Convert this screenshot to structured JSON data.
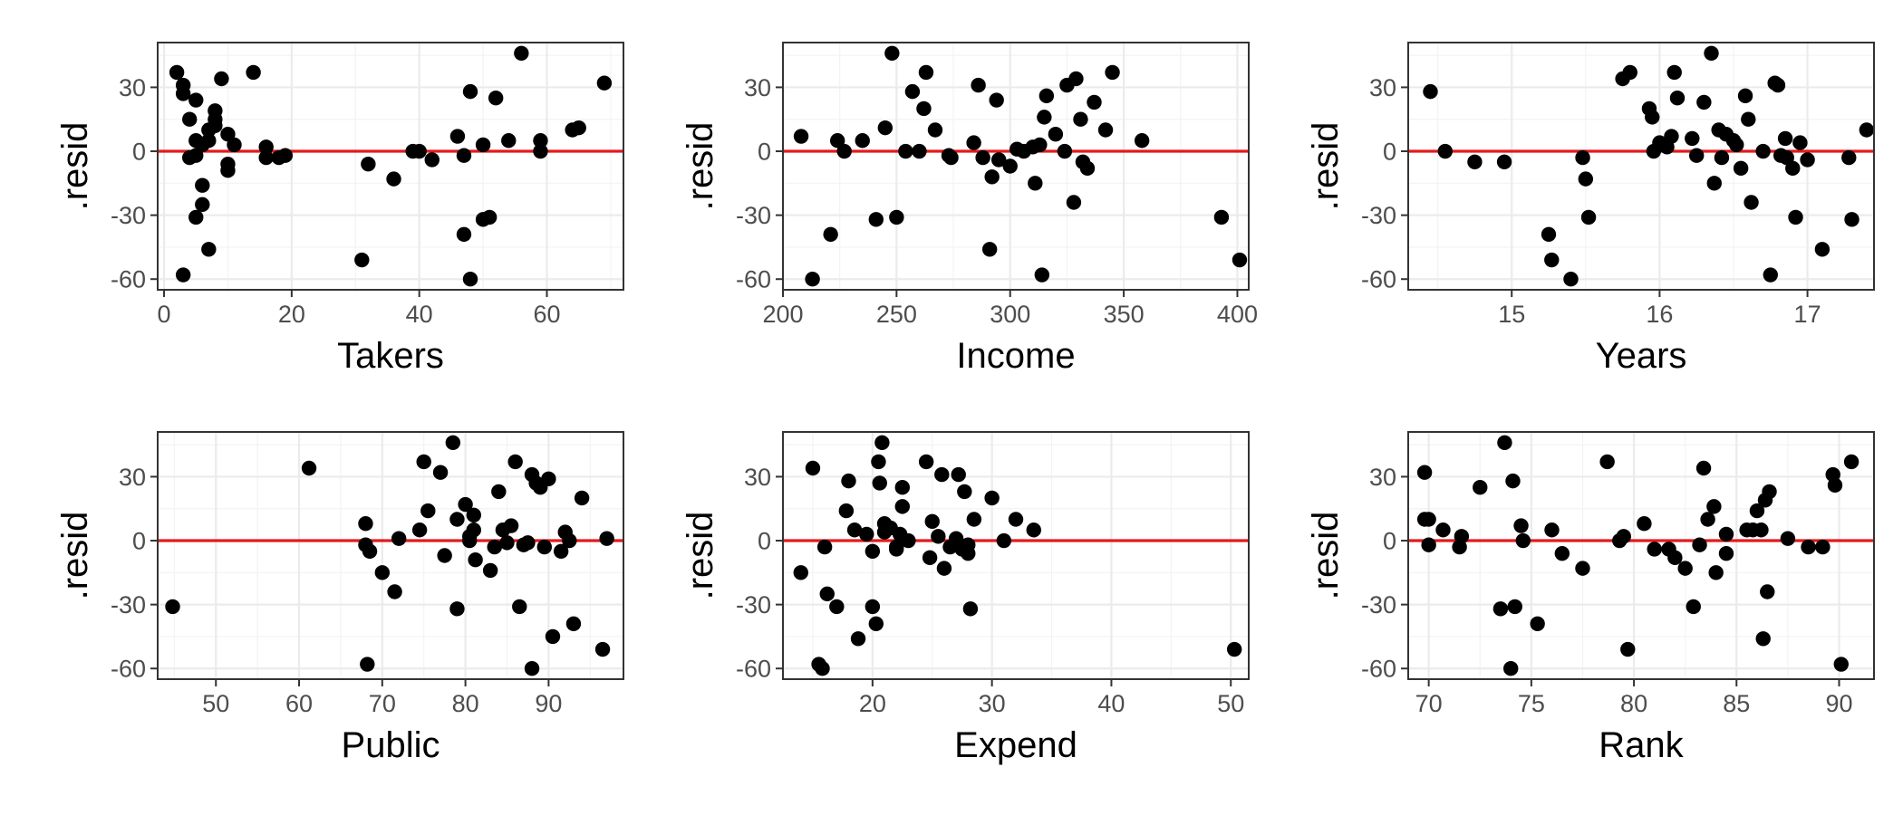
{
  "colors": {
    "points": "#000000",
    "reference_line": "#e41a1c",
    "grid": "#ebebeb",
    "border": "#333333"
  },
  "chart_data": [
    {
      "type": "scatter",
      "xlabel": "Takers",
      "ylabel": ".resid",
      "xlim": [
        -1,
        72
      ],
      "ylim": [
        -65,
        51
      ],
      "xticks": [
        0,
        20,
        40,
        60
      ],
      "yticks": [
        -60,
        -30,
        0,
        30
      ],
      "hline": 0,
      "points": [
        [
          2,
          37
        ],
        [
          3,
          31
        ],
        [
          3,
          27
        ],
        [
          3,
          -58
        ],
        [
          4,
          15
        ],
        [
          4,
          -3
        ],
        [
          5,
          24
        ],
        [
          5,
          5
        ],
        [
          5,
          -2
        ],
        [
          5,
          -31
        ],
        [
          6,
          3
        ],
        [
          6,
          -16
        ],
        [
          6,
          -25
        ],
        [
          7,
          10
        ],
        [
          7,
          -46
        ],
        [
          7,
          5
        ],
        [
          8,
          19
        ],
        [
          8,
          15
        ],
        [
          8,
          12
        ],
        [
          9,
          34
        ],
        [
          10,
          8
        ],
        [
          10,
          -6
        ],
        [
          10,
          -9
        ],
        [
          11,
          3
        ],
        [
          14,
          37
        ],
        [
          16,
          2
        ],
        [
          16,
          -3
        ],
        [
          18,
          -3
        ],
        [
          19,
          -2
        ],
        [
          31,
          -51
        ],
        [
          32,
          -6
        ],
        [
          36,
          -13
        ],
        [
          39,
          0
        ],
        [
          40,
          0
        ],
        [
          42,
          -4
        ],
        [
          46,
          7
        ],
        [
          47,
          -2
        ],
        [
          47,
          -39
        ],
        [
          48,
          28
        ],
        [
          48,
          -60
        ],
        [
          50,
          3
        ],
        [
          50,
          -32
        ],
        [
          51,
          -31
        ],
        [
          52,
          25
        ],
        [
          54,
          5
        ],
        [
          56,
          46
        ],
        [
          59,
          5
        ],
        [
          59,
          0
        ],
        [
          64,
          10
        ],
        [
          65,
          11
        ],
        [
          69,
          32
        ]
      ]
    },
    {
      "type": "scatter",
      "xlabel": "Income",
      "ylabel": ".resid",
      "xlim": [
        200,
        405
      ],
      "ylim": [
        -65,
        51
      ],
      "xticks": [
        200,
        250,
        300,
        350,
        400
      ],
      "yticks": [
        -60,
        -30,
        0,
        30
      ],
      "hline": 0,
      "points": [
        [
          208,
          7
        ],
        [
          213,
          -60
        ],
        [
          221,
          -39
        ],
        [
          224,
          5
        ],
        [
          227,
          0
        ],
        [
          235,
          5
        ],
        [
          241,
          -32
        ],
        [
          245,
          11
        ],
        [
          248,
          46
        ],
        [
          250,
          -31
        ],
        [
          254,
          0
        ],
        [
          257,
          28
        ],
        [
          260,
          0
        ],
        [
          262,
          20
        ],
        [
          263,
          37
        ],
        [
          267,
          10
        ],
        [
          273,
          -2
        ],
        [
          274,
          -3
        ],
        [
          284,
          4
        ],
        [
          286,
          31
        ],
        [
          288,
          -3
        ],
        [
          291,
          -46
        ],
        [
          292,
          -12
        ],
        [
          294,
          24
        ],
        [
          295,
          -4
        ],
        [
          300,
          -7
        ],
        [
          303,
          1
        ],
        [
          306,
          0
        ],
        [
          310,
          2
        ],
        [
          311,
          -15
        ],
        [
          313,
          3
        ],
        [
          314,
          -58
        ],
        [
          315,
          16
        ],
        [
          316,
          26
        ],
        [
          320,
          8
        ],
        [
          324,
          0
        ],
        [
          325,
          31
        ],
        [
          328,
          -24
        ],
        [
          329,
          34
        ],
        [
          331,
          15
        ],
        [
          332,
          -5
        ],
        [
          334,
          -8
        ],
        [
          337,
          23
        ],
        [
          342,
          10
        ],
        [
          345,
          37
        ],
        [
          358,
          5
        ],
        [
          393,
          -31
        ],
        [
          401,
          -51
        ]
      ]
    },
    {
      "type": "scatter",
      "xlabel": "Years",
      "ylabel": ".resid",
      "xlim": [
        14.3,
        17.45
      ],
      "ylim": [
        -65,
        51
      ],
      "xticks": [
        15,
        16,
        17
      ],
      "yticks": [
        -60,
        -30,
        0,
        30
      ],
      "hline": 0,
      "points": [
        [
          14.45,
          28
        ],
        [
          14.55,
          0
        ],
        [
          14.75,
          -5
        ],
        [
          14.95,
          -5
        ],
        [
          15.25,
          -39
        ],
        [
          15.27,
          -51
        ],
        [
          15.4,
          -60
        ],
        [
          15.48,
          -3
        ],
        [
          15.5,
          -13
        ],
        [
          15.52,
          -31
        ],
        [
          15.75,
          34
        ],
        [
          15.8,
          37
        ],
        [
          15.93,
          20
        ],
        [
          15.95,
          16
        ],
        [
          15.96,
          0
        ],
        [
          16.0,
          4
        ],
        [
          16.05,
          2
        ],
        [
          16.08,
          7
        ],
        [
          16.1,
          37
        ],
        [
          16.12,
          25
        ],
        [
          16.22,
          6
        ],
        [
          16.25,
          -2
        ],
        [
          16.3,
          23
        ],
        [
          16.35,
          46
        ],
        [
          16.37,
          -15
        ],
        [
          16.4,
          10
        ],
        [
          16.42,
          -3
        ],
        [
          16.45,
          8
        ],
        [
          16.5,
          5
        ],
        [
          16.52,
          3
        ],
        [
          16.55,
          -8
        ],
        [
          16.58,
          26
        ],
        [
          16.6,
          15
        ],
        [
          16.62,
          -24
        ],
        [
          16.7,
          0
        ],
        [
          16.75,
          -58
        ],
        [
          16.78,
          32
        ],
        [
          16.8,
          31
        ],
        [
          16.82,
          -2
        ],
        [
          16.85,
          6
        ],
        [
          16.86,
          -3
        ],
        [
          16.9,
          -8
        ],
        [
          16.92,
          -31
        ],
        [
          16.95,
          4
        ],
        [
          17.0,
          -4
        ],
        [
          17.1,
          -46
        ],
        [
          17.28,
          -3
        ],
        [
          17.3,
          -32
        ],
        [
          17.4,
          10
        ]
      ]
    },
    {
      "type": "scatter",
      "xlabel": "Public",
      "ylabel": ".resid",
      "xlim": [
        43,
        99
      ],
      "ylim": [
        -65,
        51
      ],
      "xticks": [
        50,
        60,
        70,
        80,
        90
      ],
      "yticks": [
        -60,
        -30,
        0,
        30
      ],
      "hline": 0,
      "points": [
        [
          44.8,
          -31
        ],
        [
          61.2,
          34
        ],
        [
          68,
          8
        ],
        [
          68,
          -2
        ],
        [
          68.2,
          -58
        ],
        [
          68.5,
          -5
        ],
        [
          70,
          -15
        ],
        [
          71.5,
          -24
        ],
        [
          72,
          1
        ],
        [
          74.5,
          5
        ],
        [
          75,
          37
        ],
        [
          75.5,
          14
        ],
        [
          77,
          32
        ],
        [
          77.5,
          -7
        ],
        [
          78.5,
          46
        ],
        [
          79,
          -32
        ],
        [
          79,
          10
        ],
        [
          80,
          17
        ],
        [
          80.5,
          0
        ],
        [
          80.5,
          2
        ],
        [
          81,
          12
        ],
        [
          81,
          5
        ],
        [
          81.2,
          -9
        ],
        [
          83,
          -14
        ],
        [
          83.5,
          -3
        ],
        [
          84,
          23
        ],
        [
          84.5,
          5
        ],
        [
          85,
          -1
        ],
        [
          85.5,
          7
        ],
        [
          86,
          37
        ],
        [
          86.5,
          -31
        ],
        [
          87,
          -2
        ],
        [
          87.5,
          -1
        ],
        [
          88,
          31
        ],
        [
          88,
          -60
        ],
        [
          88.5,
          27
        ],
        [
          89,
          25
        ],
        [
          89.5,
          -3
        ],
        [
          90,
          29
        ],
        [
          90.5,
          -45
        ],
        [
          91.5,
          -5
        ],
        [
          92,
          4
        ],
        [
          92.5,
          0
        ],
        [
          93,
          -39
        ],
        [
          94,
          20
        ],
        [
          96.5,
          -51
        ],
        [
          97,
          1
        ]
      ]
    },
    {
      "type": "scatter",
      "xlabel": "Expend",
      "ylabel": ".resid",
      "xlim": [
        12.5,
        51.5
      ],
      "ylim": [
        -65,
        51
      ],
      "xticks": [
        20,
        30,
        40,
        50
      ],
      "yticks": [
        -60,
        -30,
        0,
        30
      ],
      "hline": 0,
      "points": [
        [
          14,
          -15
        ],
        [
          15,
          34
        ],
        [
          15.5,
          -58
        ],
        [
          15.8,
          -60
        ],
        [
          16,
          -3
        ],
        [
          16.2,
          -25
        ],
        [
          17,
          -31
        ],
        [
          17.8,
          14
        ],
        [
          18,
          28
        ],
        [
          18.5,
          5
        ],
        [
          18.8,
          -46
        ],
        [
          19.5,
          3
        ],
        [
          20,
          -5
        ],
        [
          20,
          -31
        ],
        [
          20.3,
          -39
        ],
        [
          20.5,
          37
        ],
        [
          20.6,
          27
        ],
        [
          20.8,
          46
        ],
        [
          21,
          4
        ],
        [
          21,
          8
        ],
        [
          21.5,
          6
        ],
        [
          22,
          -4
        ],
        [
          22,
          -3
        ],
        [
          22.3,
          3
        ],
        [
          22.5,
          16
        ],
        [
          22.5,
          25
        ],
        [
          23,
          0
        ],
        [
          24.5,
          37
        ],
        [
          24.8,
          -8
        ],
        [
          25,
          9
        ],
        [
          25.5,
          2
        ],
        [
          25.8,
          31
        ],
        [
          26,
          -13
        ],
        [
          26.5,
          -3
        ],
        [
          27,
          1
        ],
        [
          27.2,
          31
        ],
        [
          27.5,
          -4
        ],
        [
          27.7,
          23
        ],
        [
          28,
          -2
        ],
        [
          28,
          -6
        ],
        [
          28.2,
          -32
        ],
        [
          28.5,
          10
        ],
        [
          30,
          20
        ],
        [
          31,
          0
        ],
        [
          32,
          10
        ],
        [
          33.5,
          5
        ],
        [
          50.3,
          -51
        ]
      ]
    },
    {
      "type": "scatter",
      "xlabel": "Rank",
      "ylabel": ".resid",
      "xlim": [
        69,
        91.7
      ],
      "ylim": [
        -65,
        51
      ],
      "xticks": [
        70,
        75,
        80,
        85,
        90
      ],
      "yticks": [
        -60,
        -30,
        0,
        30
      ],
      "hline": 0,
      "points": [
        [
          69.8,
          32
        ],
        [
          69.8,
          10
        ],
        [
          70,
          10
        ],
        [
          70,
          -2
        ],
        [
          70.7,
          5
        ],
        [
          71.5,
          -3
        ],
        [
          71.6,
          2
        ],
        [
          72.5,
          25
        ],
        [
          73.5,
          -32
        ],
        [
          73.7,
          46
        ],
        [
          74,
          -60
        ],
        [
          74.1,
          28
        ],
        [
          74.2,
          -31
        ],
        [
          74.5,
          7
        ],
        [
          74.6,
          0
        ],
        [
          75.3,
          -39
        ],
        [
          76,
          5
        ],
        [
          76.5,
          -6
        ],
        [
          77.5,
          -13
        ],
        [
          78.7,
          37
        ],
        [
          79.3,
          0
        ],
        [
          79.5,
          2
        ],
        [
          79.7,
          -51
        ],
        [
          80.5,
          8
        ],
        [
          81,
          -4
        ],
        [
          81.7,
          -4
        ],
        [
          82,
          -8
        ],
        [
          82.5,
          -13
        ],
        [
          82.9,
          -31
        ],
        [
          83.2,
          -2
        ],
        [
          83.4,
          34
        ],
        [
          83.6,
          10
        ],
        [
          83.9,
          16
        ],
        [
          84,
          -15
        ],
        [
          84.5,
          -6
        ],
        [
          84.5,
          3
        ],
        [
          85.5,
          5
        ],
        [
          85.8,
          5
        ],
        [
          86,
          14
        ],
        [
          86.2,
          5
        ],
        [
          86.3,
          -46
        ],
        [
          86.4,
          19
        ],
        [
          86.5,
          -24
        ],
        [
          86.6,
          23
        ],
        [
          87.5,
          1
        ],
        [
          88.5,
          -3
        ],
        [
          89.2,
          -3
        ],
        [
          89.7,
          31
        ],
        [
          89.8,
          26
        ],
        [
          90.1,
          -58
        ],
        [
          90.6,
          37
        ]
      ]
    }
  ]
}
